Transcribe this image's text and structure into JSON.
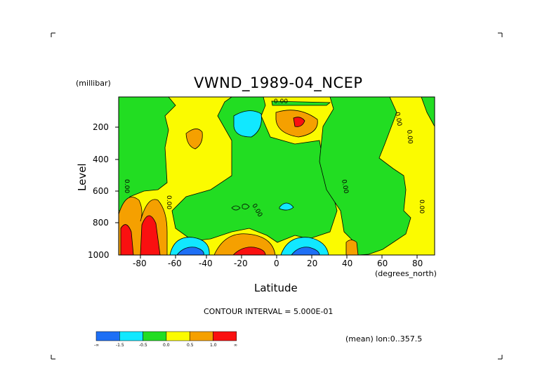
{
  "chart_data": {
    "type": "heatmap",
    "title": "VWND_1989-04_NCEP",
    "xlabel": "Latitude",
    "ylabel": "Level",
    "x_unit_label": "(degrees_north)",
    "y_unit_label": "(millibar)",
    "xlim": [
      -90,
      90
    ],
    "ylim": [
      1000,
      50
    ],
    "x_ticks": [
      "-80",
      "-60",
      "-40",
      "-20",
      "0",
      "20",
      "40",
      "60",
      "80"
    ],
    "y_ticks": [
      "200",
      "400",
      "600",
      "800",
      "1000"
    ],
    "contour_interval_text": "CONTOUR INTERVAL = 5.000E-01",
    "mean_text": "(mean) lon:0..357.5",
    "contour_labels": [
      "0.00",
      "0.00",
      "0.00",
      "0.00",
      "0.00",
      "0.00",
      "0.00",
      "0.00"
    ],
    "colorbar": {
      "labels": [
        "-∞",
        "-1.5",
        "-0.5",
        "0.0",
        "0.5",
        "1.0",
        "∞"
      ],
      "colors": [
        "#1e6ff5",
        "#11e8ff",
        "#22dd22",
        "#fbfb00",
        "#f5a000",
        "#fa1010"
      ]
    },
    "regions": [
      {
        "level": "positive",
        "lat": [
          -90,
          -55
        ],
        "pressure": [
          700,
          1000
        ],
        "max_band": "red"
      },
      {
        "level": "positive",
        "lat": [
          -25,
          -5
        ],
        "pressure": [
          880,
          1000
        ],
        "max_band": "red"
      },
      {
        "level": "positive",
        "lat": [
          8,
          22
        ],
        "pressure": [
          130,
          230
        ],
        "max_band": "red"
      },
      {
        "level": "negative",
        "lat": [
          -60,
          -35
        ],
        "pressure": [
          900,
          1000
        ],
        "max_band": "blue"
      },
      {
        "level": "negative",
        "lat": [
          5,
          30
        ],
        "pressure": [
          910,
          1000
        ],
        "max_band": "blue"
      },
      {
        "level": "negative",
        "lat": [
          -30,
          -15
        ],
        "pressure": [
          120,
          260
        ],
        "max_band": "cyan"
      },
      {
        "level": "negative",
        "lat": [
          2,
          10
        ],
        "pressure": [
          640,
          720
        ],
        "max_band": "cyan"
      }
    ]
  }
}
